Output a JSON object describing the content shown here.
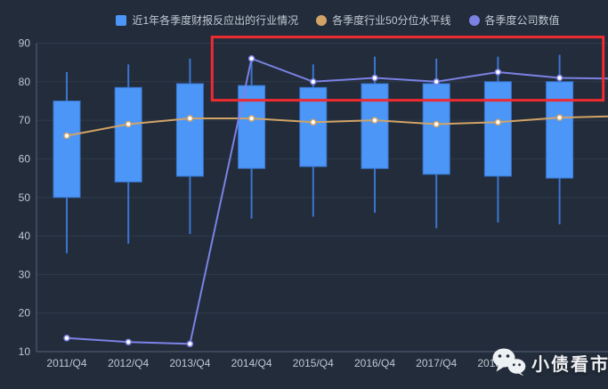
{
  "watermark": {
    "text": "小债看市",
    "icon": "wechat-icon"
  },
  "chart_data": {
    "type": "candlestick",
    "title": "",
    "xlabel": "",
    "ylabel": "",
    "categories": [
      "2011/Q4",
      "2012/Q4",
      "2013/Q4",
      "2014/Q4",
      "2015/Q4",
      "2016/Q4",
      "2017/Q4",
      "2018/Q4",
      ""
    ],
    "yticks": [
      10,
      20,
      30,
      40,
      50,
      60,
      70,
      80,
      90
    ],
    "ylim": [
      10,
      90
    ],
    "grid": true,
    "legend_position": "top-center",
    "series": [
      {
        "name": "近1年各季度财报反应出的行业情况",
        "type": "candlestick",
        "marker": "square",
        "color": "#4c96f7",
        "border_color": "#3a76cf",
        "boxes_format": "[whisker_low, box_low, box_high, whisker_high]",
        "boxes": [
          [
            35.5,
            50.0,
            75.0,
            82.5
          ],
          [
            38.0,
            54.0,
            78.5,
            84.5
          ],
          [
            40.5,
            55.5,
            79.5,
            86.0
          ],
          [
            44.5,
            57.5,
            79.0,
            86.0
          ],
          [
            45.0,
            58.0,
            78.5,
            84.5
          ],
          [
            46.0,
            57.5,
            79.5,
            86.5
          ],
          [
            42.0,
            56.0,
            79.5,
            86.0
          ],
          [
            43.5,
            55.5,
            80.0,
            86.5
          ],
          [
            43.0,
            55.0,
            80.0,
            87.0
          ]
        ]
      },
      {
        "name": "各季度行业50分位水平线",
        "type": "line",
        "marker": "circle",
        "color": "#d2a366",
        "values": [
          66,
          69,
          70.5,
          70.5,
          69.5,
          70,
          69,
          69.5,
          70.7
        ],
        "extend_right_value": 71
      },
      {
        "name": "各季度公司数值",
        "type": "line",
        "marker": "circle",
        "color": "#7b82e4",
        "values": [
          13.5,
          12.5,
          12,
          86,
          80,
          81,
          80,
          82.5,
          81
        ],
        "extend_right_value": 80.8
      }
    ],
    "annotation": {
      "shape": "rect",
      "color": "#ee2b30",
      "x_index_range": [
        2.36,
        8.71
      ],
      "y_value_range": [
        75.2,
        91.6
      ]
    },
    "colors": {
      "background": "#222c3a",
      "grid": "#2f3b4d",
      "axis": "#55637a",
      "tick_text": "#bfc8d4"
    }
  }
}
